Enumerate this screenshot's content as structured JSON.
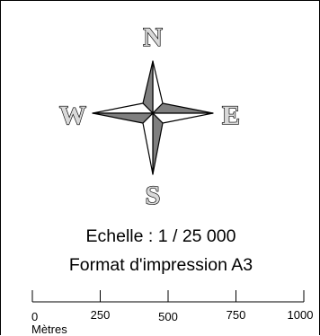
{
  "compass": {
    "north": "N",
    "east": "E",
    "south": "S",
    "west": "W",
    "colors": {
      "dark_facet": "#7f7f7f",
      "light_facet": "#ffffff",
      "letter_fill": "#d9d9d9",
      "outline": "#000000"
    }
  },
  "scale": {
    "ratio_text": "Echelle : 1 / 25 000",
    "print_format_text": "Format d'impression A3",
    "unit_label": "Mètres",
    "ticks": [
      0,
      250,
      500,
      750,
      1000
    ],
    "tick_labels": [
      "0",
      "250",
      "500",
      "750",
      "1000"
    ]
  }
}
